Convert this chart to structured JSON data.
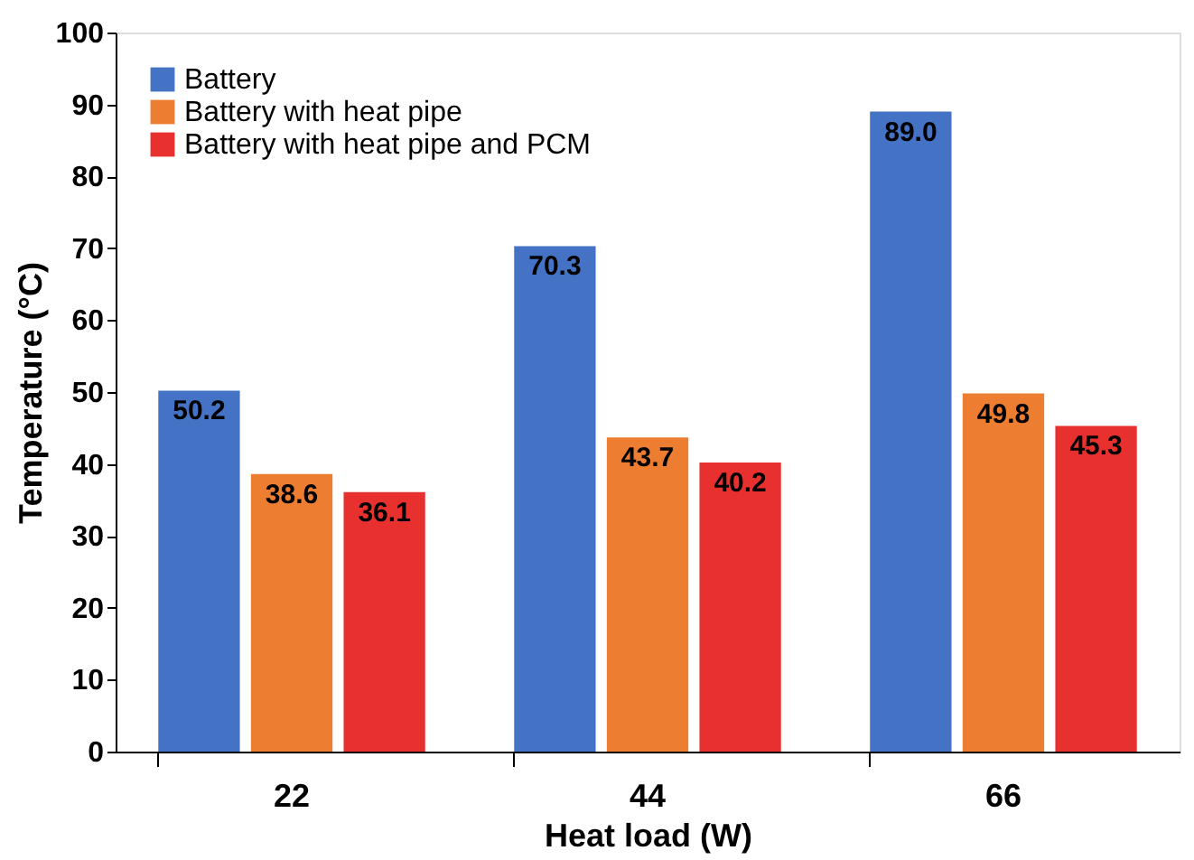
{
  "chart_data": {
    "type": "bar",
    "xlabel": "Heat load (W)",
    "ylabel": "Temperature (°C)",
    "categories": [
      "22",
      "44",
      "66"
    ],
    "series": [
      {
        "name": "Battery",
        "color": "#4472c4",
        "values": [
          50.2,
          70.3,
          89.0
        ],
        "value_labels": [
          "50.2",
          "70.3",
          "89.0"
        ]
      },
      {
        "name": "Battery with heat pipe",
        "color": "#ed7d31",
        "values": [
          38.6,
          43.7,
          49.8
        ],
        "value_labels": [
          "38.6",
          "43.7",
          "49.8"
        ]
      },
      {
        "name": "Battery with heat pipe and PCM",
        "color": "#e8312f",
        "values": [
          36.1,
          40.2,
          45.3
        ],
        "value_labels": [
          "36.1",
          "40.2",
          "45.3"
        ]
      }
    ],
    "ylim": [
      0,
      100
    ],
    "yticks": [
      0,
      10,
      20,
      30,
      40,
      50,
      60,
      70,
      80,
      90,
      100
    ],
    "grid": false,
    "legend": "top left"
  }
}
